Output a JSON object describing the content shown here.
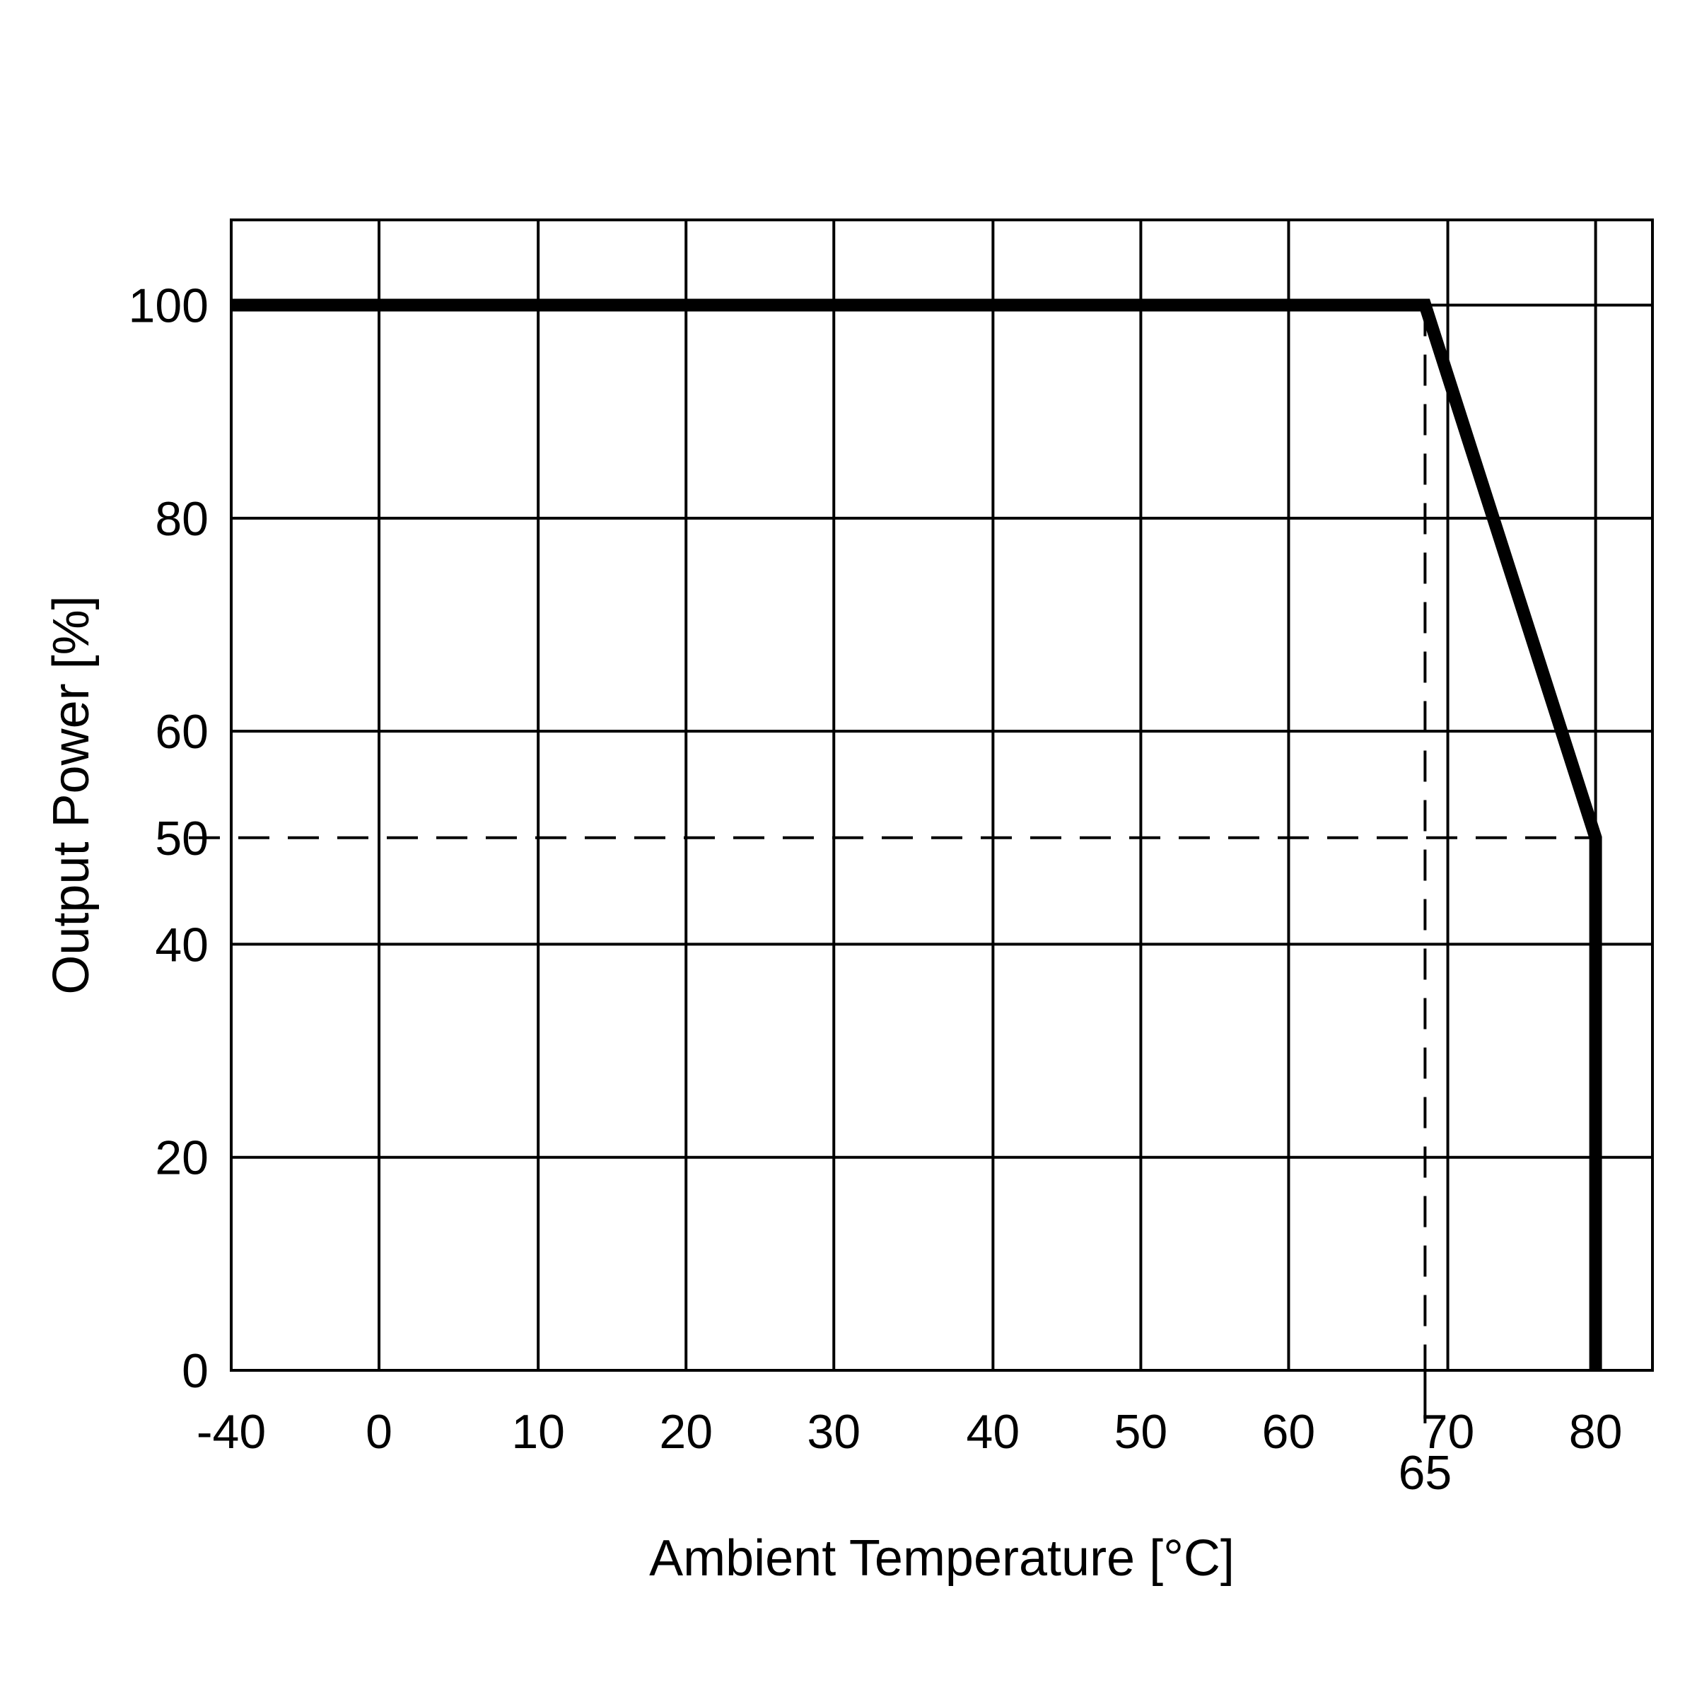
{
  "chart_data": {
    "type": "line",
    "xlabel": "Ambient Temperature [°C]",
    "ylabel": "Output Power [%]",
    "xlim": [
      -40,
      85
    ],
    "ylim": [
      0,
      108
    ],
    "x_gridlines": [
      -40,
      -27,
      -13,
      0,
      13,
      27,
      40,
      53,
      67,
      80
    ],
    "y_gridlines": [
      0,
      20,
      40,
      60,
      80,
      100
    ],
    "x_tick_labels": [
      {
        "x": -40,
        "label": "-40"
      },
      {
        "x": 0,
        "label": "0"
      },
      {
        "x": 10,
        "label": "10"
      },
      {
        "x": 20,
        "label": "20"
      },
      {
        "x": 30,
        "label": "30"
      },
      {
        "x": 40,
        "label": "40"
      },
      {
        "x": 50,
        "label": "50"
      },
      {
        "x": 60,
        "label": "60"
      },
      {
        "x": 70,
        "label": "70"
      },
      {
        "x": 80,
        "label": "80"
      }
    ],
    "x_tick_positions": [
      -40,
      -27,
      -13,
      0,
      13,
      27,
      40,
      53,
      67,
      80
    ],
    "extra_x_label": {
      "x": 65,
      "label": "65"
    },
    "y_tick_labels": [
      {
        "y": 0,
        "label": "0"
      },
      {
        "y": 20,
        "label": "20"
      },
      {
        "y": 40,
        "label": "40"
      },
      {
        "y": 50,
        "label": "50"
      },
      {
        "y": 60,
        "label": "60"
      },
      {
        "y": 80,
        "label": "80"
      },
      {
        "y": 100,
        "label": "100"
      }
    ],
    "grid": true,
    "series": [
      {
        "x": [
          -40,
          65,
          80,
          80
        ],
        "y": [
          100,
          100,
          50,
          0
        ]
      }
    ],
    "reference_lines": [
      {
        "type": "horizontal",
        "y": 50,
        "x_from": -40,
        "x_to": 80,
        "style": "dashed"
      },
      {
        "type": "vertical",
        "x": 65,
        "y_from": 100,
        "y_to": 0,
        "style": "dashed"
      }
    ],
    "colors": {
      "line": "#000000",
      "grid": "#000000",
      "background": "#ffffff"
    }
  }
}
